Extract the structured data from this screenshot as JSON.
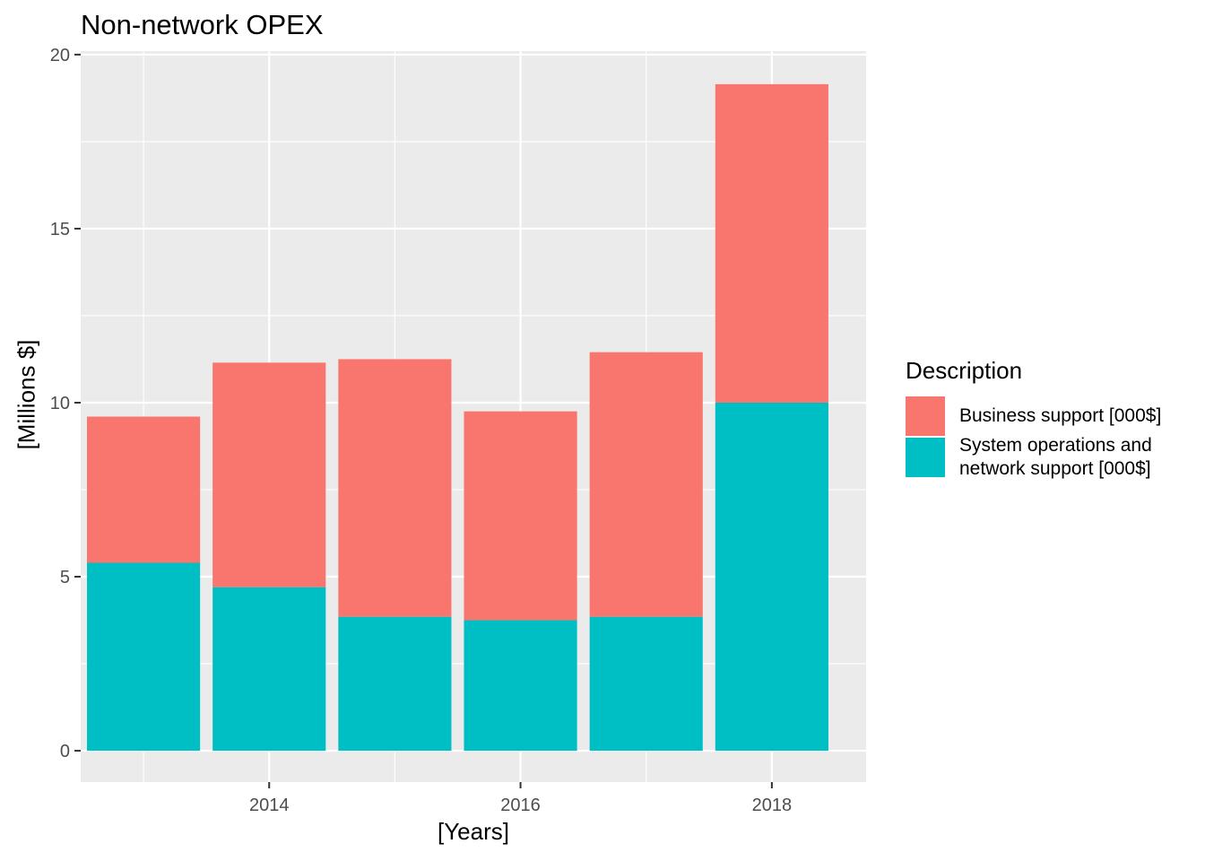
{
  "chart_data": {
    "type": "bar",
    "stacked": true,
    "title": "Non-network OPEX",
    "xlabel": "[Years]",
    "ylabel": "[Millions $]",
    "x": [
      2013,
      2014,
      2015,
      2016,
      2017,
      2018
    ],
    "x_ticks": [
      "2014",
      "2016",
      "2018"
    ],
    "xlim": [
      2012.5,
      2018.75
    ],
    "ylim": [
      -0.9,
      20.1
    ],
    "y_ticks": [
      "0",
      "5",
      "10",
      "15",
      "20"
    ],
    "grid": true,
    "legend": {
      "title": "Description",
      "placement": "right"
    },
    "series": [
      {
        "name": "System operations and network support [000$]",
        "color": "#00BFC4",
        "values": [
          5.4,
          4.7,
          3.85,
          3.75,
          3.85,
          10.0
        ]
      },
      {
        "name": "Business support [000$]",
        "color": "#F8766D",
        "values": [
          4.2,
          6.45,
          7.4,
          6.0,
          7.6,
          9.15
        ]
      }
    ],
    "colors": {
      "panel": "#EBEBEB",
      "grid": "#FFFFFF",
      "tick_text": "#4D4D4D"
    }
  }
}
